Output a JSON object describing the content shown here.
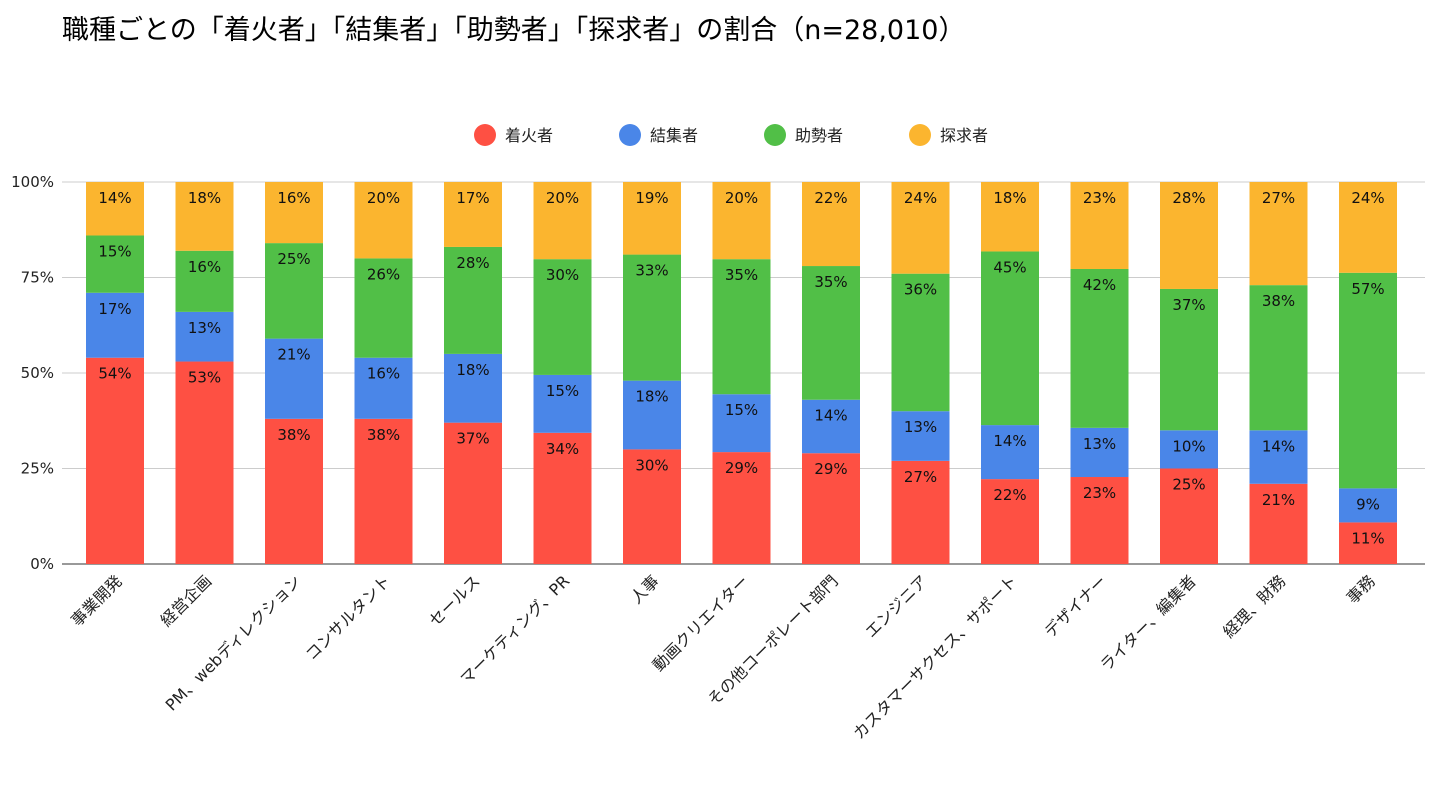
{
  "chart_data": {
    "type": "bar",
    "stacked": true,
    "title": "職種ごとの「着火者」「結集者」「助勢者」「探求者」の割合（n=28,010）",
    "categories": [
      "事業開発",
      "経営企画",
      "PM、webディレクション",
      "コンサルタント",
      "セールス",
      "マーケティング、PR",
      "人事",
      "動画クリエイター",
      "その他コーポレート部門",
      "エンジニア",
      "カスタマーサクセス、サポート",
      "デザイナー",
      "ライター、編集者",
      "経理、財務",
      "事務"
    ],
    "series": [
      {
        "name": "着火者",
        "color": "#fe5043",
        "values": [
          54,
          53,
          38,
          38,
          37,
          34,
          30,
          29,
          29,
          27,
          22,
          23,
          25,
          21,
          11
        ]
      },
      {
        "name": "結集者",
        "color": "#4a86e8",
        "values": [
          17,
          13,
          21,
          16,
          18,
          15,
          18,
          15,
          14,
          13,
          14,
          13,
          10,
          14,
          9
        ]
      },
      {
        "name": "助勢者",
        "color": "#51bf47",
        "values": [
          15,
          16,
          25,
          26,
          28,
          30,
          33,
          35,
          35,
          36,
          45,
          42,
          37,
          38,
          57
        ]
      },
      {
        "name": "探求者",
        "color": "#fbb52f",
        "values": [
          14,
          18,
          16,
          20,
          17,
          20,
          19,
          20,
          22,
          24,
          18,
          23,
          28,
          27,
          24
        ]
      }
    ],
    "yticks": [
      "0%",
      "25%",
      "50%",
      "75%",
      "100%"
    ],
    "ylim": [
      0,
      100
    ],
    "value_suffix": "%",
    "legend": "top-center",
    "grid": true
  }
}
